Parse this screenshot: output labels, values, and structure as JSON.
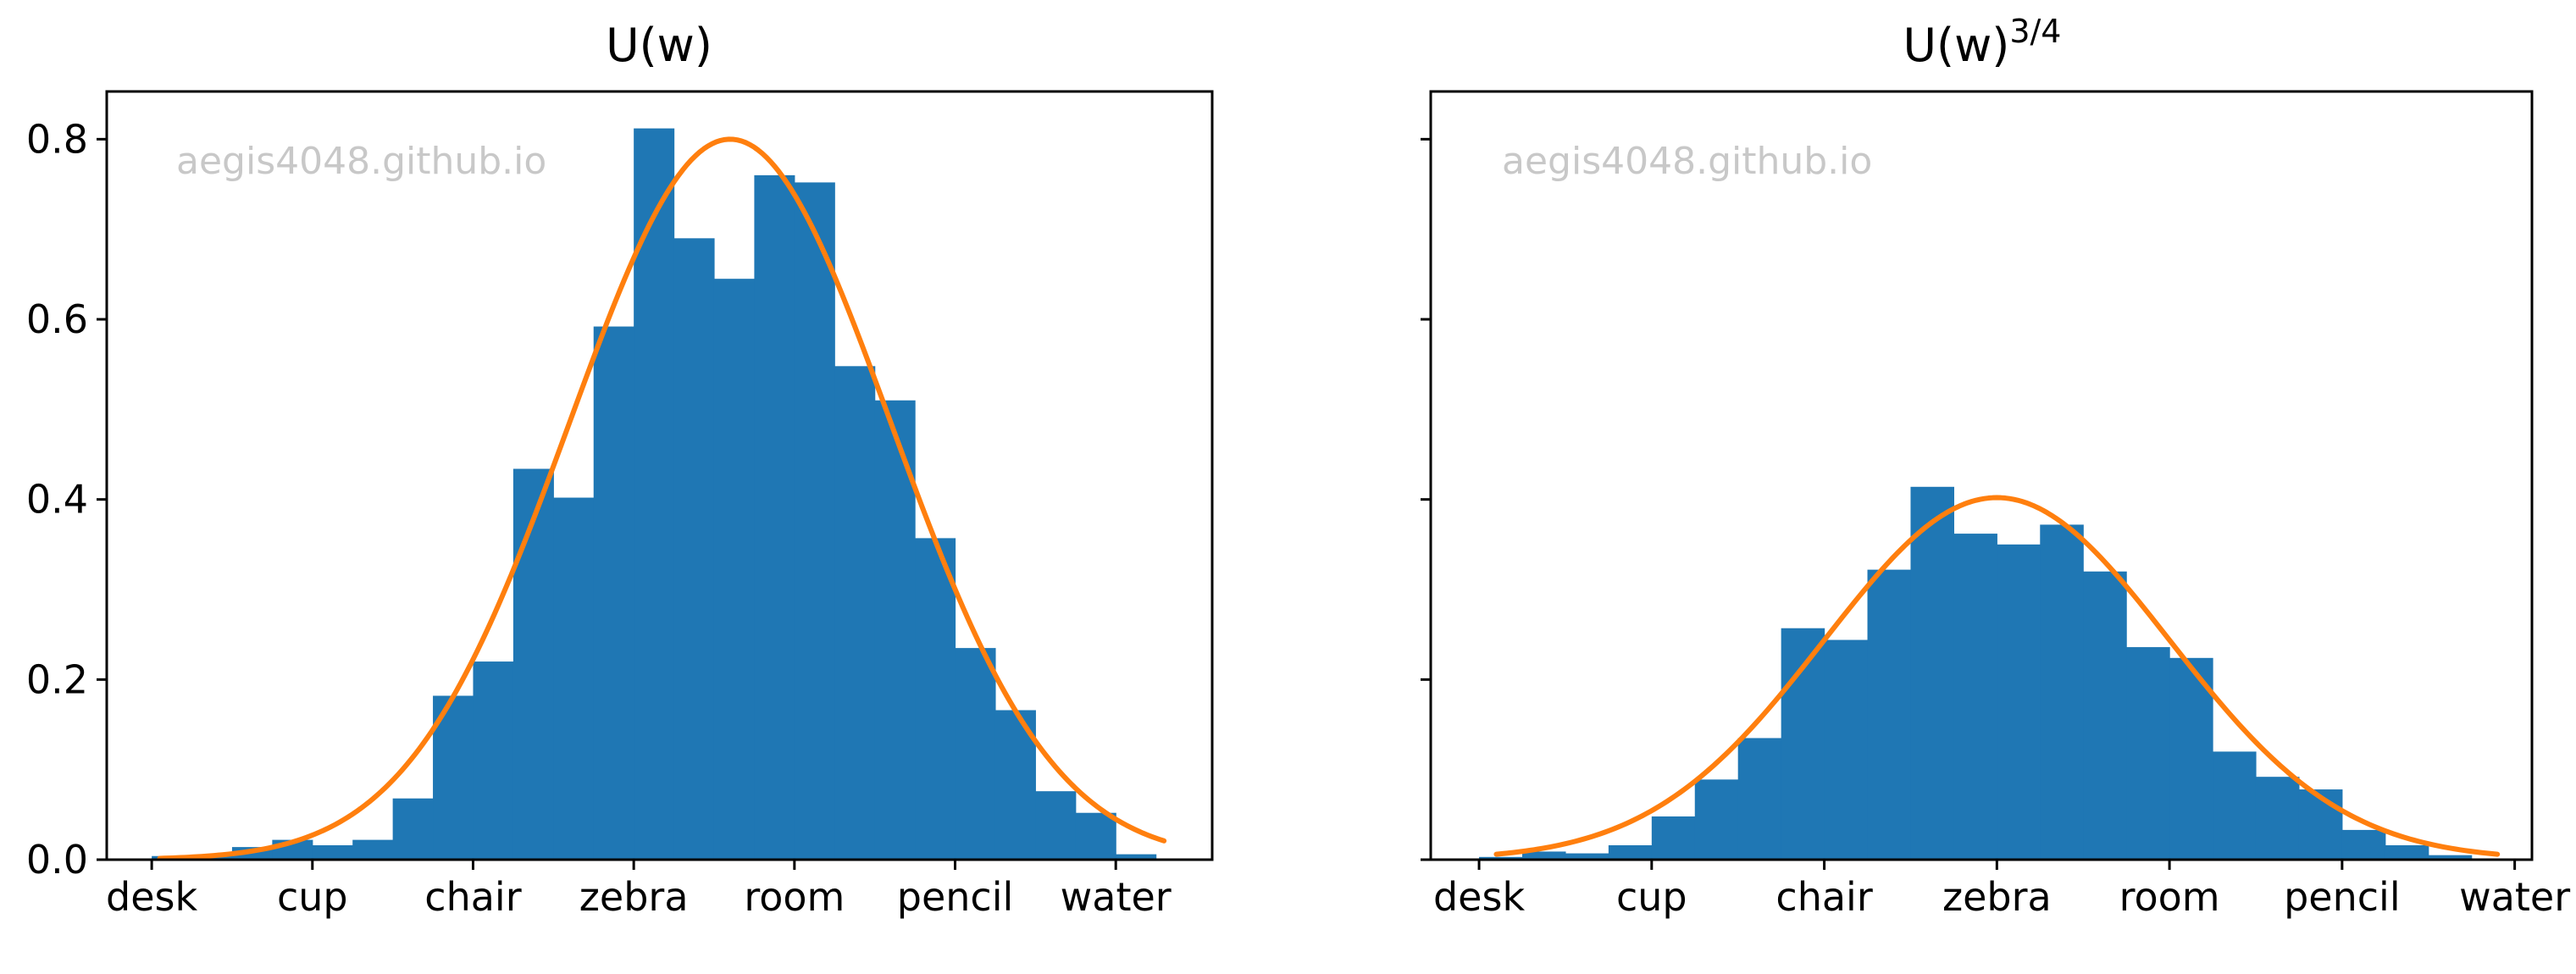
{
  "colors": {
    "bar": "#1f77b4",
    "curve": "#ff7f0e",
    "watermark": "#c8c8c8",
    "axis": "#000000"
  },
  "chart_data": [
    {
      "type": "bar",
      "title": "U(w)",
      "watermark": "aegis4048.github.io",
      "xticks": [
        "desk",
        "cup",
        "chair",
        "zebra",
        "room",
        "pencil",
        "water"
      ],
      "yticks": [
        "0.0",
        "0.2",
        "0.4",
        "0.6",
        "0.8"
      ],
      "ylim": [
        0,
        0.853
      ],
      "xlim": [
        -0.28,
        6.6
      ],
      "grid": false,
      "bin_width": 0.25,
      "bins_start": 0.0,
      "values": [
        0.004,
        0.004,
        0.014,
        0.022,
        0.016,
        0.022,
        0.068,
        0.182,
        0.22,
        0.434,
        0.402,
        0.592,
        0.812,
        0.69,
        0.645,
        0.76,
        0.752,
        0.548,
        0.51,
        0.357,
        0.235,
        0.166,
        0.076,
        0.052,
        0.006
      ],
      "curve": {
        "type": "gaussian",
        "mean": 3.6,
        "std": 1.0,
        "peak": 0.8,
        "x_range": [
          0.05,
          6.3
        ]
      }
    },
    {
      "type": "bar",
      "title": "U(w)3/4",
      "title_base": "U(w)",
      "title_exponent": "3/4",
      "watermark": "aegis4048.github.io",
      "xticks": [
        "desk",
        "cup",
        "chair",
        "zebra",
        "room",
        "pencil",
        "water"
      ],
      "yticks": [
        "",
        "",
        "",
        "",
        ""
      ],
      "ylim": [
        0,
        0.853
      ],
      "xlim": [
        -0.28,
        6.1
      ],
      "grid": false,
      "bin_width": 0.25,
      "bins_start": 0.0,
      "values": [
        0.003,
        0.009,
        0.007,
        0.016,
        0.048,
        0.089,
        0.135,
        0.257,
        0.244,
        0.322,
        0.414,
        0.362,
        0.35,
        0.372,
        0.32,
        0.236,
        0.224,
        0.12,
        0.092,
        0.078,
        0.033,
        0.016,
        0.005
      ],
      "curve": {
        "type": "gaussian",
        "mean": 3.0,
        "std": 1.0,
        "peak": 0.402,
        "x_range": [
          0.1,
          5.9
        ]
      }
    }
  ]
}
